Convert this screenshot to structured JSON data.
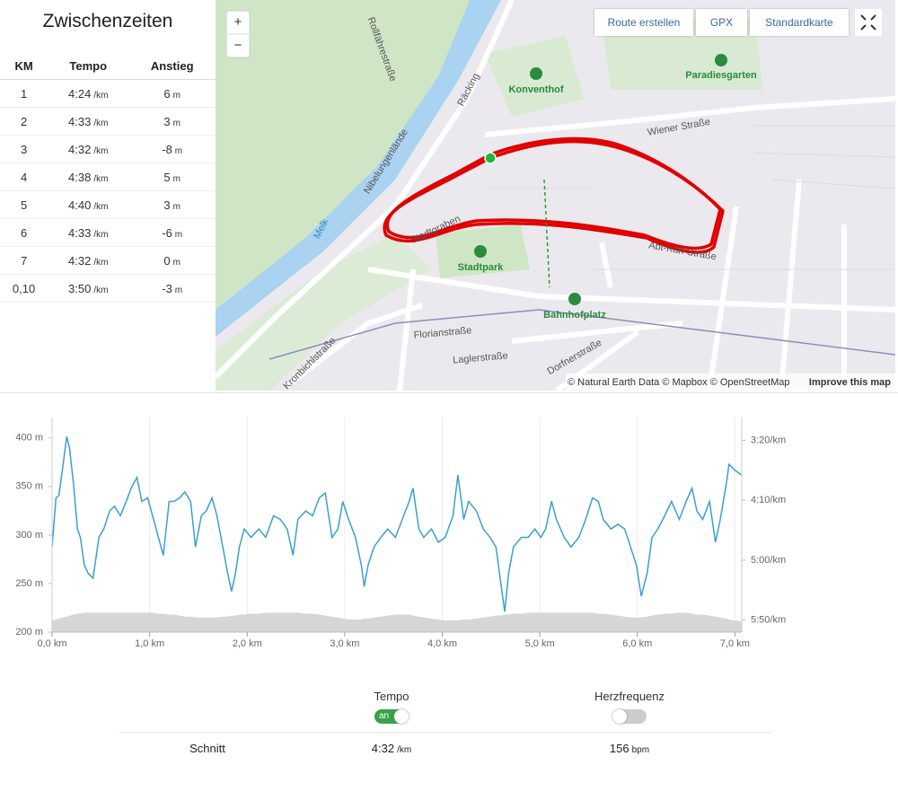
{
  "splits": {
    "title": "Zwischenzeiten",
    "header": [
      "KM",
      "Tempo",
      "Anstieg"
    ],
    "rows": [
      {
        "km": "1",
        "tempo": "4:24",
        "tempo_unit": "/km",
        "anstieg": "6",
        "anstieg_unit": "m"
      },
      {
        "km": "2",
        "tempo": "4:33",
        "tempo_unit": "/km",
        "anstieg": "3",
        "anstieg_unit": "m"
      },
      {
        "km": "3",
        "tempo": "4:32",
        "tempo_unit": "/km",
        "anstieg": "-8",
        "anstieg_unit": "m"
      },
      {
        "km": "4",
        "tempo": "4:38",
        "tempo_unit": "/km",
        "anstieg": "5",
        "anstieg_unit": "m"
      },
      {
        "km": "5",
        "tempo": "4:40",
        "tempo_unit": "/km",
        "anstieg": "3",
        "anstieg_unit": "m"
      },
      {
        "km": "6",
        "tempo": "4:33",
        "tempo_unit": "/km",
        "anstieg": "-6",
        "anstieg_unit": "m"
      },
      {
        "km": "7",
        "tempo": "4:32",
        "tempo_unit": "/km",
        "anstieg": "0",
        "anstieg_unit": "m"
      },
      {
        "km": "0,10",
        "tempo": "3:50",
        "tempo_unit": "/km",
        "anstieg": "-3",
        "anstieg_unit": "m"
      }
    ]
  },
  "map": {
    "zoom_in": "+",
    "zoom_out": "−",
    "buttons": [
      "Route erstellen",
      "GPX",
      "Standardkarte"
    ],
    "labels": [
      "Rollfährestraße",
      "Nibelungenlände",
      "Räcking",
      "Melk",
      "Konventhof",
      "Paradiesgarten",
      "Wiener Straße",
      "Stadtgraben",
      "Stadtpark",
      "Bahnhofplatz",
      "Florianstraße",
      "Laglerstraße",
      "Dorfnerstraße",
      "Kronbichlstraße",
      "Abt-Karl-Straße"
    ],
    "attribution": "© Natural Earth Data © Mapbox © OpenStreetMap",
    "improve": "Improve this map"
  },
  "chart_data": {
    "type": "line",
    "x": [
      0,
      0.04,
      0.07,
      0.11,
      0.15,
      0.18,
      0.22,
      0.26,
      0.29,
      0.33,
      0.37,
      0.42,
      0.48,
      0.53,
      0.59,
      0.64,
      0.7,
      0.76,
      0.81,
      0.87,
      0.92,
      0.98,
      1.03,
      1.09,
      1.14,
      1.2,
      1.25,
      1.31,
      1.36,
      1.42,
      1.47,
      1.53,
      1.58,
      1.64,
      1.69,
      1.75,
      1.8,
      1.84,
      1.88,
      1.92,
      1.97,
      2.04,
      2.12,
      2.19,
      2.27,
      2.34,
      2.41,
      2.47,
      2.52,
      2.6,
      2.67,
      2.74,
      2.8,
      2.87,
      2.93,
      2.98,
      3.04,
      3.11,
      3.17,
      3.2,
      3.24,
      3.3,
      3.37,
      3.44,
      3.52,
      3.59,
      3.66,
      3.7,
      3.76,
      3.81,
      3.89,
      3.96,
      4.03,
      4.11,
      4.16,
      4.22,
      4.27,
      4.35,
      4.42,
      4.49,
      4.55,
      4.6,
      4.64,
      4.68,
      4.73,
      4.81,
      4.88,
      4.95,
      5.01,
      5.06,
      5.12,
      5.17,
      5.25,
      5.32,
      5.4,
      5.47,
      5.54,
      5.6,
      5.65,
      5.73,
      5.8,
      5.87,
      5.93,
      5.99,
      6.04,
      6.1,
      6.15,
      6.21,
      6.28,
      6.35,
      6.43,
      6.5,
      6.56,
      6.61,
      6.67,
      6.74,
      6.8,
      6.85,
      6.91,
      6.94,
      7.0,
      7.07
    ],
    "series": [
      {
        "type": "area",
        "color": "#d6d6d6",
        "axis": "y",
        "values": [
          212,
          213,
          214,
          215,
          216,
          217,
          218,
          219,
          219,
          220,
          220,
          220,
          220,
          220,
          220,
          220,
          220,
          220,
          220,
          220,
          220,
          220,
          220,
          219,
          219,
          218,
          218,
          217,
          216,
          216,
          215,
          215,
          215,
          215,
          215,
          216,
          216,
          217,
          217,
          218,
          218,
          219,
          219,
          220,
          220,
          220,
          220,
          220,
          220,
          219,
          219,
          218,
          217,
          216,
          215,
          214,
          213,
          213,
          213,
          214,
          214,
          215,
          216,
          217,
          218,
          218,
          218,
          217,
          216,
          215,
          214,
          213,
          212,
          212,
          212,
          213,
          213,
          214,
          215,
          216,
          217,
          217,
          218,
          218,
          219,
          219,
          220,
          220,
          220,
          220,
          220,
          220,
          220,
          220,
          220,
          220,
          220,
          219,
          219,
          218,
          217,
          216,
          215,
          215,
          215,
          216,
          217,
          218,
          219,
          219,
          220,
          220,
          219,
          218,
          218,
          217,
          216,
          215,
          214,
          213,
          212,
          211
        ]
      },
      {
        "type": "line",
        "color": "#3a9fd0",
        "axis": "y2",
        "values": [
          289,
          248,
          246,
          222,
          197,
          207,
          237,
          274,
          281,
          304,
          311,
          315,
          281,
          274,
          259,
          255,
          263,
          251,
          240,
          231,
          251,
          248,
          263,
          281,
          296,
          251,
          251,
          248,
          243,
          251,
          289,
          263,
          259,
          248,
          263,
          289,
          311,
          326,
          311,
          289,
          274,
          281,
          274,
          281,
          263,
          266,
          274,
          296,
          266,
          259,
          263,
          248,
          244,
          281,
          274,
          251,
          266,
          281,
          304,
          322,
          304,
          289,
          281,
          274,
          281,
          266,
          251,
          240,
          274,
          281,
          274,
          285,
          281,
          263,
          229,
          266,
          251,
          259,
          274,
          281,
          289,
          319,
          343,
          311,
          289,
          281,
          281,
          274,
          281,
          274,
          251,
          266,
          281,
          289,
          281,
          266,
          248,
          251,
          266,
          274,
          270,
          274,
          289,
          304,
          330,
          311,
          281,
          274,
          263,
          251,
          266,
          251,
          240,
          259,
          266,
          251,
          285,
          266,
          237,
          220,
          225,
          229
        ]
      }
    ],
    "xlim": [
      0,
      7.07
    ],
    "xticks": [
      {
        "value": 0,
        "label": "0,0 km"
      },
      {
        "value": 1,
        "label": "1,0 km"
      },
      {
        "value": 2,
        "label": "2,0 km"
      },
      {
        "value": 3,
        "label": "3,0 km"
      },
      {
        "value": 4,
        "label": "4,0 km"
      },
      {
        "value": 5,
        "label": "5,0 km"
      },
      {
        "value": 6,
        "label": "6,0 km"
      },
      {
        "value": 7,
        "label": "7,0 km"
      }
    ],
    "ylim": [
      200,
      421
    ],
    "yticks": [
      {
        "value": 200,
        "label": "200 m"
      },
      {
        "value": 250,
        "label": "250 m"
      },
      {
        "value": 300,
        "label": "300 m"
      },
      {
        "value": 350,
        "label": "350 m"
      },
      {
        "value": 400,
        "label": "400 m"
      }
    ],
    "y2lim": [
      360,
      181
    ],
    "y2ticks": [
      {
        "value": 200,
        "label": "3:20/km"
      },
      {
        "value": 250,
        "label": "4:10/km"
      },
      {
        "value": 300,
        "label": "5:00/km"
      },
      {
        "value": 350,
        "label": "5:50/km"
      }
    ],
    "grid": true
  },
  "toggles": [
    {
      "label": "Tempo",
      "state": "an"
    },
    {
      "label": "Herzfrequenz"
    }
  ],
  "summary": {
    "label": "Schnitt",
    "tempo": "4:32",
    "tempo_unit": "/km",
    "hr": "156",
    "hr_unit": "bpm"
  }
}
